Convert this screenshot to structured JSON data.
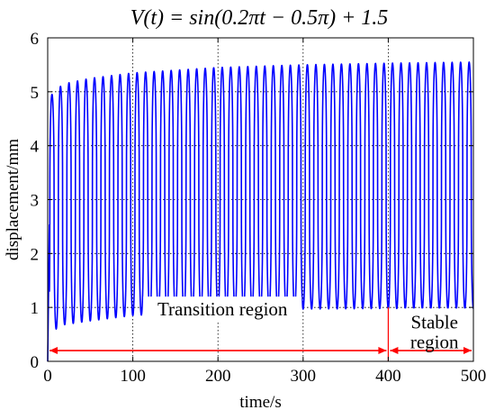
{
  "chart_data": {
    "type": "line",
    "title": "V(t) = sin(0.2πt − 0.5π) + 1.5",
    "xlabel": "time/s",
    "ylabel": "displacement/mm",
    "xlim": [
      0,
      500
    ],
    "ylim": [
      0,
      6
    ],
    "x_ticks": [
      0,
      100,
      200,
      300,
      400,
      500
    ],
    "y_ticks": [
      0,
      1,
      2,
      3,
      4,
      5,
      6
    ],
    "grid": true,
    "series": [
      {
        "color": "#0000ff",
        "description_points": {
          "period_s": 10,
          "upper_envelope": [
            [
              5,
              4.95
            ],
            [
              10,
              5.05
            ],
            [
              20,
              5.15
            ],
            [
              50,
              5.25
            ],
            [
              100,
              5.35
            ],
            [
              200,
              5.45
            ],
            [
              300,
              5.5
            ],
            [
              400,
              5.53
            ],
            [
              500,
              5.55
            ]
          ],
          "lower_envelope": [
            [
              5,
              0.55
            ],
            [
              10,
              0.6
            ],
            [
              20,
              0.68
            ],
            [
              50,
              0.75
            ],
            [
              100,
              0.85
            ],
            [
              200,
              0.93
            ],
            [
              300,
              0.97
            ],
            [
              400,
              0.98
            ],
            [
              500,
              0.98
            ]
          ]
        }
      }
    ],
    "annotations": [
      {
        "label": "Transition region",
        "x_start": 0,
        "x_end": 400,
        "y": 0.2,
        "color": "#ff0000"
      },
      {
        "label": "Stable region",
        "label_lines": [
          "Stable",
          "region"
        ],
        "x_start": 400,
        "x_end": 500,
        "y": 0.2,
        "color": "#ff0000"
      }
    ],
    "region_divider": {
      "x": 400,
      "y_from": 0,
      "y_to": 1.0,
      "color": "#ff0000"
    }
  }
}
